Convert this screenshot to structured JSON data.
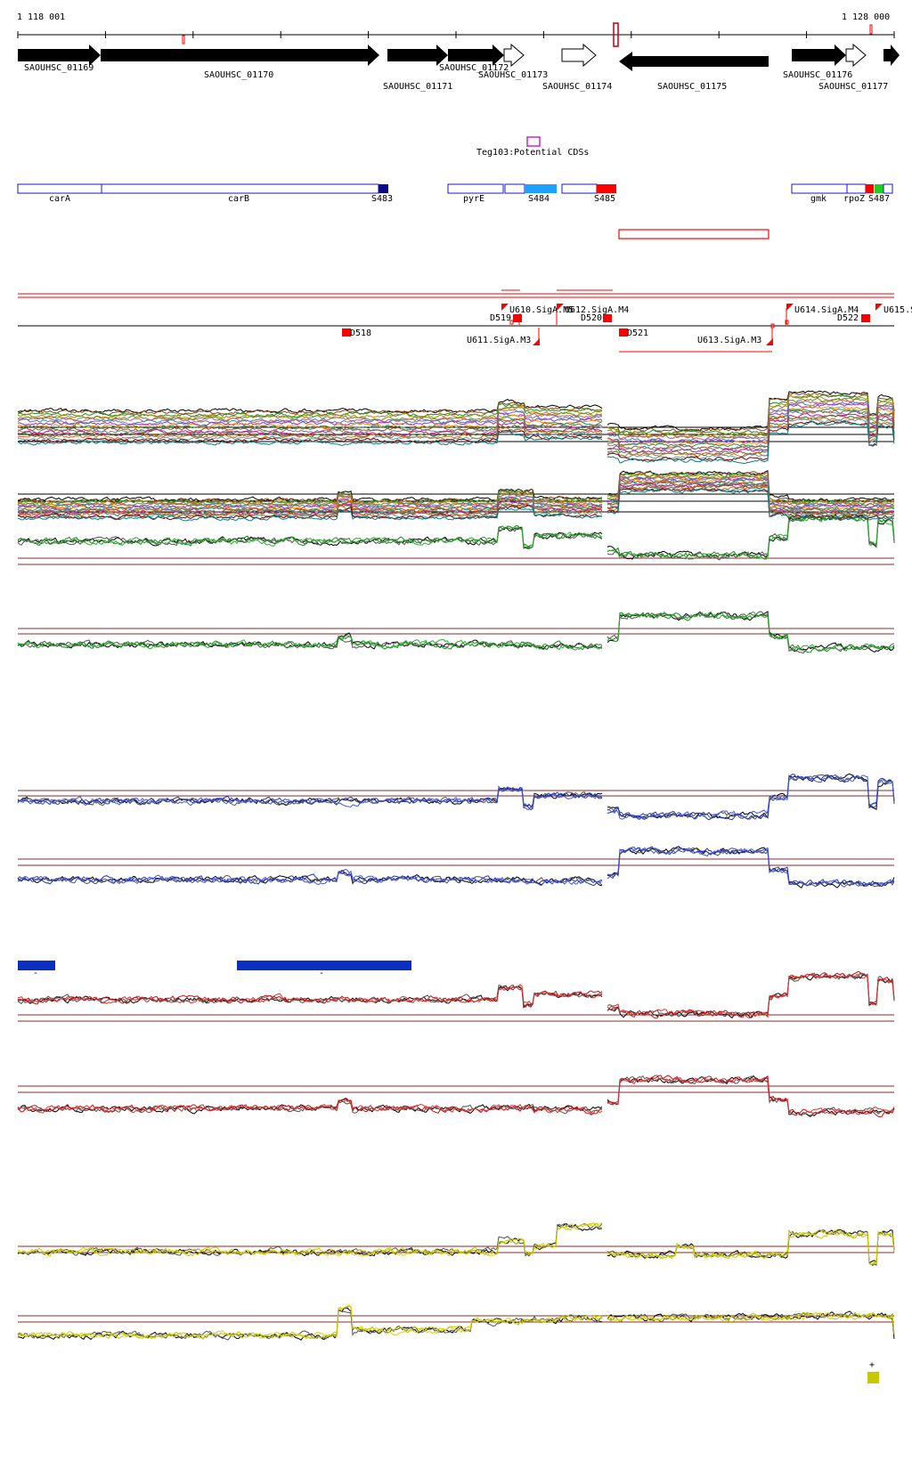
{
  "coords": {
    "start": "1 118 001",
    "end": "1 128 000"
  },
  "genes": [
    "SAOUHSC_01169",
    "SAOUHSC_01170",
    "SAOUHSC_01171",
    "SAOUHSC_01172",
    "SAOUHSC_01173",
    "SAOUHSC_01174",
    "SAOUHSC_01175",
    "SAOUHSC_01176",
    "SAOUHSC_01177"
  ],
  "potential_cds_label": "Teg103:Potential CDSs",
  "annotations": [
    "carA",
    "carB",
    "S483",
    "pyrE",
    "S484",
    "S485",
    "gmk",
    "rpoZ",
    "S487"
  ],
  "segments": [
    "D518",
    "D519",
    "D520",
    "D521",
    "D522"
  ],
  "promoters": [
    "U610.SigA.M5",
    "U612.SigA.M4",
    "U611.SigA.M3",
    "U613.SigA.M3",
    "U614.SigA.M4",
    "U615.S"
  ],
  "marks": {
    "minus": "-",
    "plus": "+"
  },
  "colors": {
    "gene": "#000000",
    "annotation": "#1a1acc",
    "segment_red": "#ff0000",
    "promoter_red": "#ff0000",
    "track_green": "#1c8a1c",
    "track_blue": "#1f35c4",
    "track_red": "#cc1111",
    "track_yellow": "#d4d400",
    "ref_line": "#8b2a2a",
    "bar_blue": "#0b2fbf",
    "olive_square": "#c8c800",
    "cds_magenta": "#d020d0",
    "s484": "#1ea0ff",
    "s487": "#22cc22"
  }
}
